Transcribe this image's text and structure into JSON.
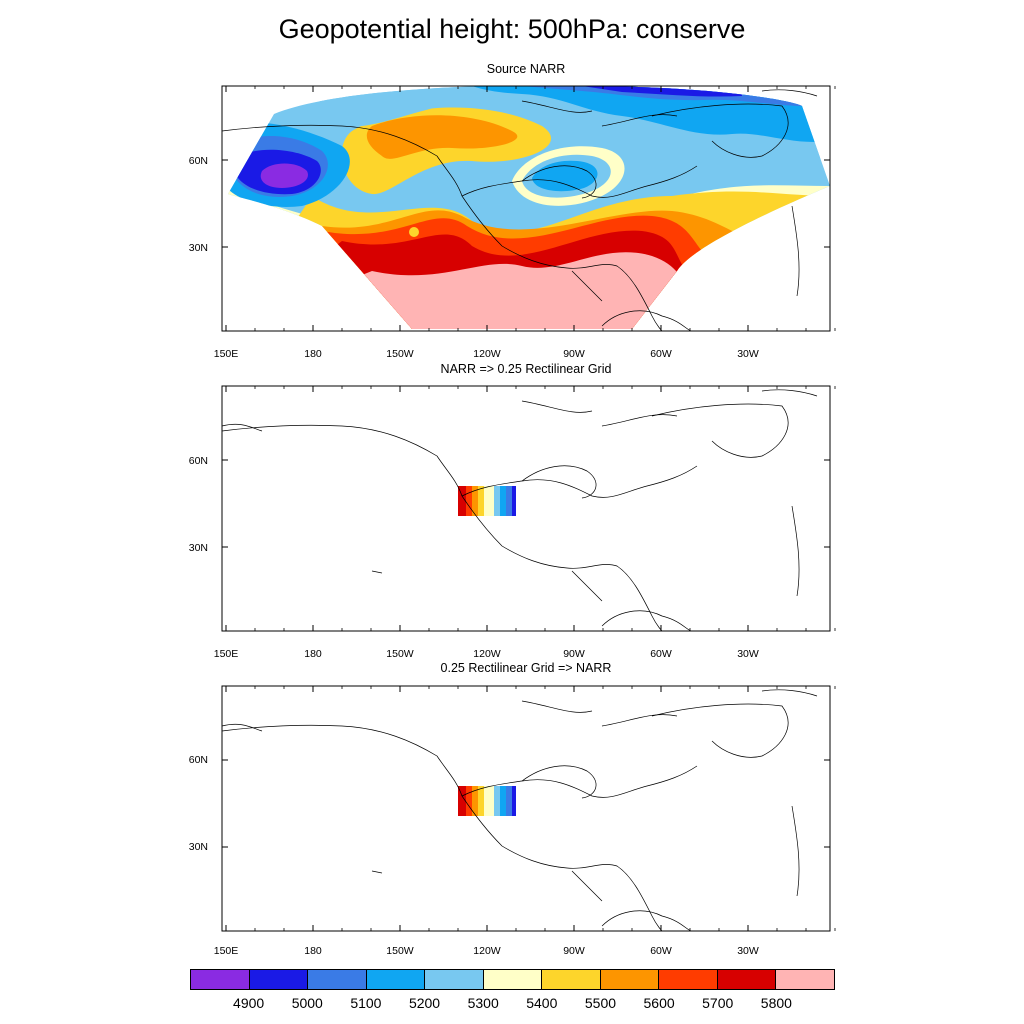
{
  "title": "Geopotential height: 500hPa: conserve",
  "panels": [
    {
      "id": "source",
      "title": "Source NARR"
    },
    {
      "id": "to-rect",
      "title": "NARR => 0.25 Rectilinear Grid"
    },
    {
      "id": "back",
      "title": "0.25 Rectilinear Grid => NARR"
    }
  ],
  "lat_labels": [
    "60N",
    "30N"
  ],
  "lon_labels": [
    "150E",
    "180",
    "150W",
    "120W",
    "90W",
    "60W",
    "30W"
  ],
  "colorbar": {
    "colors": [
      "#8a2be2",
      "#1a1ae6",
      "#3a7be6",
      "#10a6f2",
      "#78c8f0",
      "#ffffc8",
      "#fdd52b",
      "#fd9500",
      "#ff3c00",
      "#d70000",
      "#ffb4b4"
    ],
    "labels": [
      "4900",
      "5000",
      "5100",
      "5200",
      "5300",
      "5400",
      "5500",
      "5600",
      "5700",
      "5800"
    ]
  },
  "map": {
    "projection": "cylindrical-equidistant",
    "lon_range": [
      150,
      360
    ],
    "lat_range": [
      0,
      85
    ],
    "variable": "Geopotential height",
    "level": "500hPa",
    "method": "conserve"
  }
}
